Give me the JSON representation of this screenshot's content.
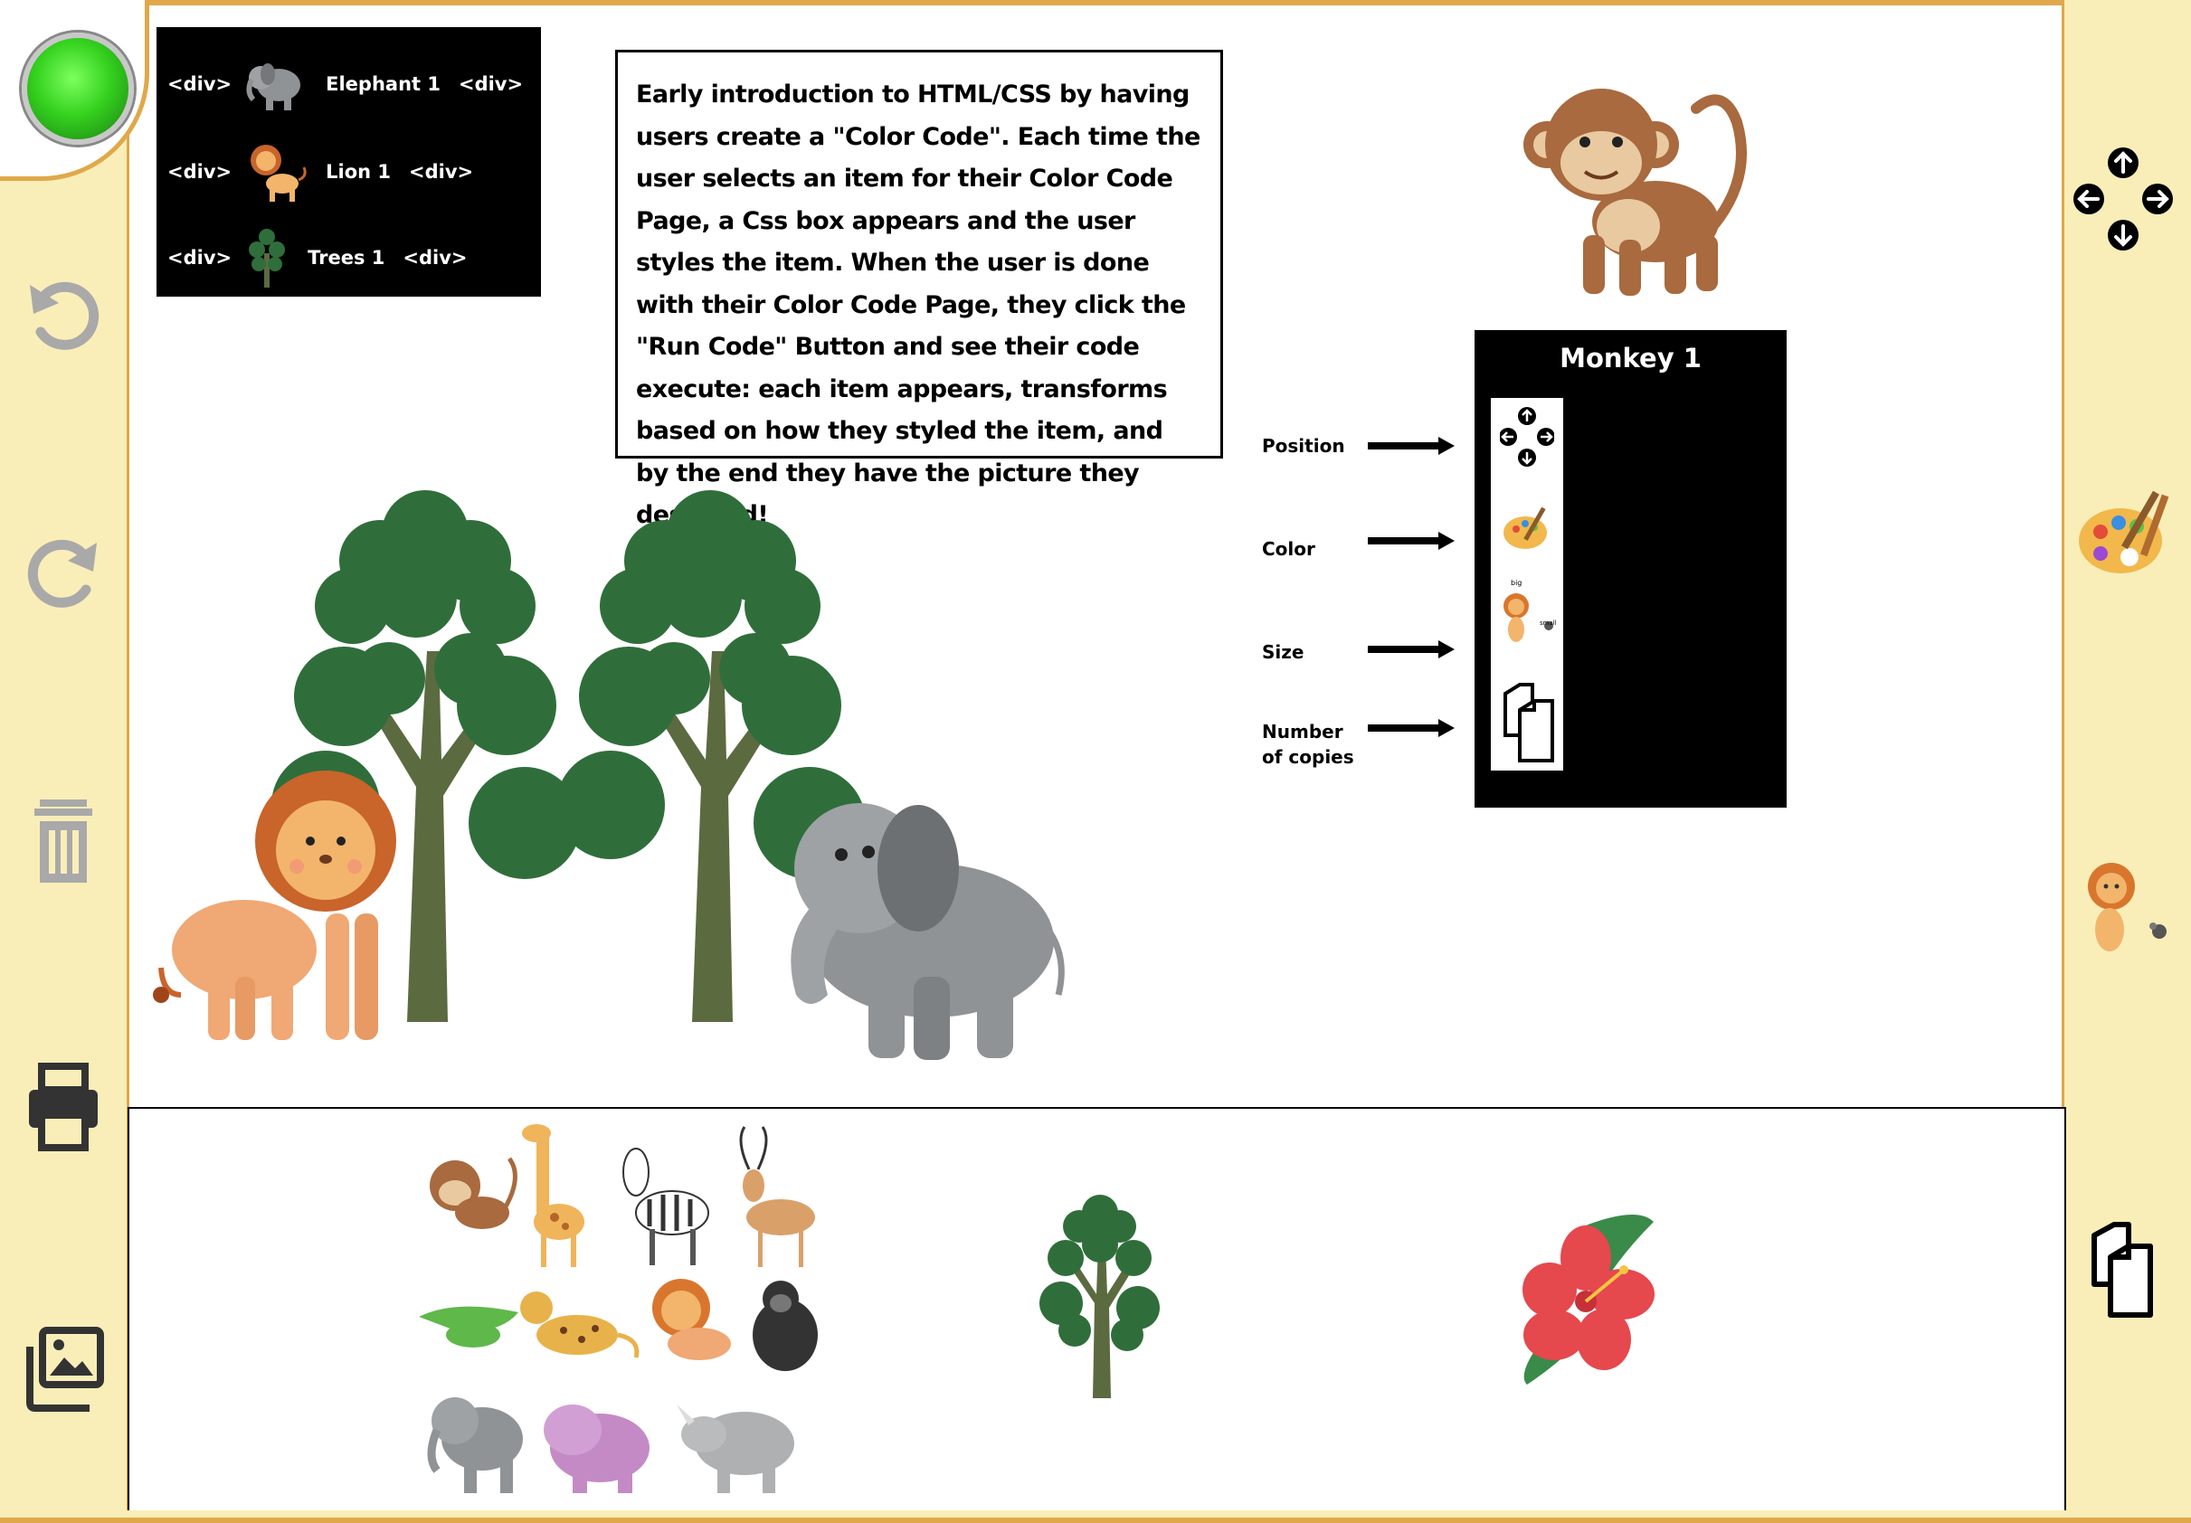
{
  "code_panel": {
    "rows": [
      {
        "open_tag": "<div>",
        "name": "Elephant 1",
        "close_tag": "<div>",
        "icon": "elephant-icon"
      },
      {
        "open_tag": "<div>",
        "name": "Lion 1",
        "close_tag": "<div>",
        "icon": "lion-icon"
      },
      {
        "open_tag": "<div>",
        "name": "Trees 1",
        "close_tag": "<div>",
        "icon": "tree-icon"
      }
    ]
  },
  "description": "Early introduction to HTML/CSS by having users create a \"Color Code\".  Each time the user selects an item for their Color Code Page, a Css box appears and the user styles the item.  When the user is done with their Color Code Page, they click the \"Run Code\" Button and see their code execute: each item appears, transforms based on how they styled the item, and by the end they have the picture they designed!",
  "properties": {
    "position": "Position",
    "color": "Color",
    "size": "Size",
    "copies_line1": "Number",
    "copies_line2": "of copies"
  },
  "monkey_panel": {
    "title": "Monkey 1",
    "size_big": "big",
    "size_small": "small"
  },
  "left_toolbar": {
    "run": "run-button",
    "icons": [
      "undo-icon",
      "redo-icon",
      "trash-icon",
      "print-icon",
      "gallery-icon"
    ]
  },
  "right_toolbar": {
    "icons": [
      "move-arrows-icon",
      "palette-icon",
      "resize-lion-icon",
      "copies-icon"
    ]
  },
  "palette_items": [
    "animals-group",
    "tree-item",
    "hibiscus-flower-item"
  ],
  "colors": {
    "sidebar_bg": "#f9eeb8",
    "border_orange": "#e0a84a",
    "run_green": "#35d21f",
    "tree_green": "#2f6e3a",
    "trunk": "#5c6a40",
    "elephant_gray": "#8f9396",
    "lion_orange": "#e8a06a",
    "monkey_brown": "#a86a3e"
  }
}
